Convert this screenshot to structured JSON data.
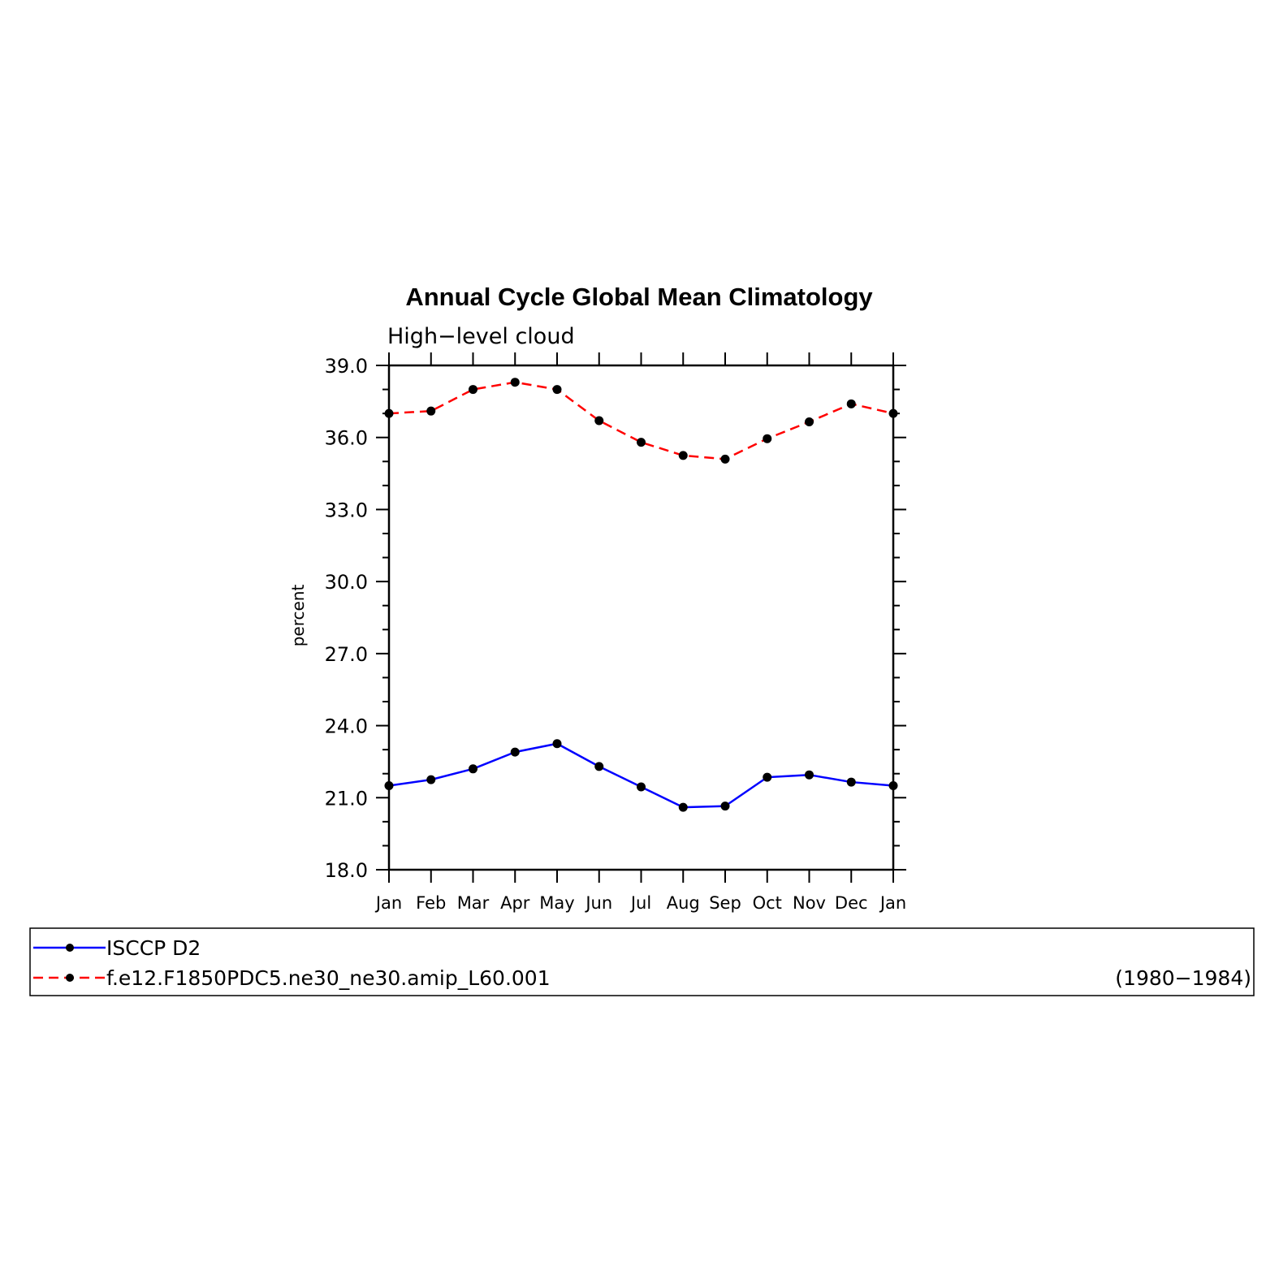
{
  "chart_data": {
    "type": "line",
    "title": "Annual Cycle Global Mean Climatology",
    "subtitle": "High−level cloud",
    "ylabel": "percent",
    "xlabel": "",
    "ylim": [
      18.0,
      39.0
    ],
    "yticks": [
      "18.0",
      "21.0",
      "24.0",
      "27.0",
      "30.0",
      "33.0",
      "36.0",
      "39.0"
    ],
    "ytick_values": [
      18,
      21,
      24,
      27,
      30,
      33,
      36,
      39
    ],
    "categories": [
      "Jan",
      "Feb",
      "Mar",
      "Apr",
      "May",
      "Jun",
      "Jul",
      "Aug",
      "Sep",
      "Oct",
      "Nov",
      "Dec",
      "Jan"
    ],
    "grid": false,
    "legend_position": "bottom",
    "series": [
      {
        "name": "ISCCP D2",
        "color": "#0000ff",
        "dash": "solid",
        "values": [
          21.5,
          21.75,
          22.2,
          22.9,
          23.25,
          22.3,
          21.45,
          20.6,
          20.65,
          21.85,
          21.95,
          21.65,
          21.5
        ]
      },
      {
        "name": "f.e12.F1850PDC5.ne30_ne30.amip_L60.001",
        "color": "#ff0000",
        "dash": "dashed",
        "values": [
          37.0,
          37.1,
          38.0,
          38.3,
          38.0,
          36.7,
          35.8,
          35.25,
          35.1,
          35.95,
          36.65,
          37.4,
          37.0
        ]
      }
    ],
    "legend_note": "(1980−1984)"
  }
}
